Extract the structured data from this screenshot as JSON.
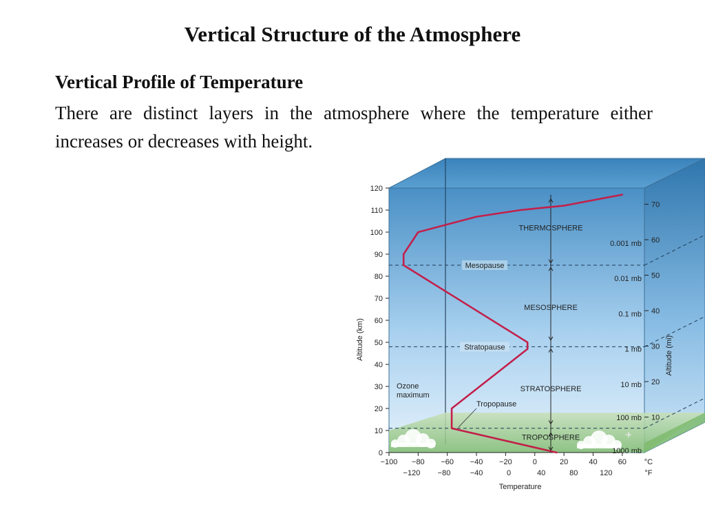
{
  "slide": {
    "title": "Vertical Structure of the Atmosphere",
    "subtitle": "Vertical Profile of Temperature",
    "body": "There are distinct layers in the atmosphere where the temperature either increases or decreases with height."
  },
  "chart_data": {
    "type": "line",
    "xlabel": "Temperature",
    "ylabel": "Altitude (km)",
    "y2label": "Altitude (mi)",
    "xlim": [
      -100,
      70
    ],
    "ylim": [
      0,
      120
    ],
    "x_ticks_c": [
      -100,
      -80,
      -60,
      -40,
      -20,
      0,
      20,
      40,
      60
    ],
    "x_ticks_f": [
      -120,
      -80,
      -40,
      0,
      40,
      80,
      120
    ],
    "x_unit_c": "°C",
    "x_unit_f": "°F",
    "y_ticks_km": [
      0,
      10,
      20,
      30,
      40,
      50,
      60,
      70,
      80,
      90,
      100,
      110,
      120
    ],
    "y_ticks_mi": [
      10,
      20,
      30,
      40,
      50,
      60,
      70
    ],
    "series": [
      {
        "name": "",
        "x": [
          15,
          -57,
          -57,
          -5,
          -5,
          -90,
          -90,
          -80,
          -40,
          -10,
          20,
          60
        ],
        "y": [
          0,
          11,
          20,
          47,
          50,
          85,
          90,
          100,
          107,
          110,
          112,
          117
        ]
      }
    ],
    "boundaries": [
      {
        "label": "Tropopause",
        "altitude": 11
      },
      {
        "label": "Stratopause",
        "altitude": 48
      },
      {
        "label": "Mesopause",
        "altitude": 85
      }
    ],
    "layers": [
      {
        "label": "TROPOSPHERE",
        "altitude": 7
      },
      {
        "label": "STRATOSPHERE",
        "altitude": 29
      },
      {
        "label": "MESOSPHERE",
        "altitude": 66
      },
      {
        "label": "THERMOSPHERE",
        "altitude": 102
      }
    ],
    "pressures": [
      {
        "label": "1000 mb",
        "altitude": 1
      },
      {
        "label": "100 mb",
        "altitude": 16
      },
      {
        "label": "10 mb",
        "altitude": 31
      },
      {
        "label": "1 mb",
        "altitude": 47
      },
      {
        "label": "0.1 mb",
        "altitude": 63
      },
      {
        "label": "0.01 mb",
        "altitude": 79
      },
      {
        "label": "0.001 mb",
        "altitude": 95
      }
    ],
    "annotations": [
      {
        "label": "Ozone maximum",
        "altitude": 30
      }
    ],
    "colors": {
      "profile": "#c2204a",
      "sky_top": "#3e88c0",
      "sky_bottom": "#d8ebf8",
      "ground": "#9ccb8c"
    }
  }
}
